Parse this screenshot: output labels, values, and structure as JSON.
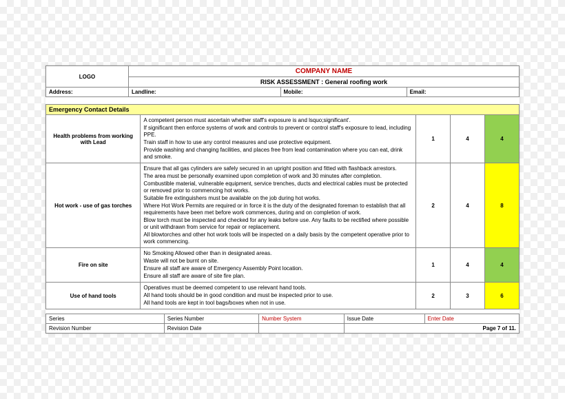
{
  "header": {
    "logo_label": "LOGO",
    "company_name": "COMPANY NAME",
    "subtitle": "RISK ASSESSMENT : General roofing work",
    "address_label": "Address:",
    "landline_label": "Landline:",
    "mobile_label": "Mobile:",
    "email_label": "Email:"
  },
  "section_title": "Emergency Contact Details",
  "rows": [
    {
      "hazard": "Health problems from working with Lead",
      "controls": [
        "A competent person must ascertain whether staff's exposure is  and lsquo;significant'.",
        "If significant then enforce systems of work and controls to prevent or control staff's exposure to lead, including PPE.",
        "Train staff in how to use any control measures and use protective equipment.",
        "Provide washing and changing facilities, and places free from lead contamination where you can eat, drink and smoke."
      ],
      "s1": "1",
      "s2": "4",
      "s3": "4",
      "c3": "green"
    },
    {
      "hazard": "Hot work - use of gas torches",
      "controls": [
        "Ensure that all gas cylinders are safely secured in an upright position and fitted with flashback arrestors.",
        "The area must be personally examined upon completion of work and 30 minutes after completion.",
        "Combustible material, vulnerable equipment, service trenches, ducts and electrical cables must be protected or removed prior to commencing hot works.",
        "Suitable fire extinguishers must be available on the job during hot works.",
        "Where Hot Work Permits are required or in force it is the duty of the designated foreman to establish that all requirements have been met before work commences, during and on completion of work.",
        "Blow torch must be inspected and checked for any leaks before use. Any faults to be rectified where possible or unit withdrawn from service for repair or replacement.",
        "All blowtorches and other hot work tools will be inspected on a daily basis by the competent operative prior to work commencing."
      ],
      "s1": "2",
      "s2": "4",
      "s3": "8",
      "c3": "yellow"
    },
    {
      "hazard": "Fire on site",
      "controls": [
        "No Smoking Allowed other than in designated areas.",
        "Waste will not be burnt on site.",
        "Ensure all staff are aware of Emergency Assembly Point location.",
        "Ensure all staff are aware of site fire plan."
      ],
      "s1": "1",
      "s2": "4",
      "s3": "4",
      "c3": "green"
    },
    {
      "hazard": "Use of hand tools",
      "controls": [
        "Operatives must be deemed competent to use relevant hand tools.",
        "All hand tools should be in good condition and must be inspected prior to use.",
        "All hand tools are kept in tool bags/boxes when not in use."
      ],
      "s1": "2",
      "s2": "3",
      "s3": "6",
      "c3": "yellow"
    }
  ],
  "footer": {
    "series": "Series",
    "series_number": "Series Number",
    "number_system": "Number System",
    "issue_date": "Issue Date",
    "enter_date": "Enter Date",
    "revision_number": "Revision Number",
    "revision_date": "Revision Date",
    "page": "Page 7 of 11."
  }
}
